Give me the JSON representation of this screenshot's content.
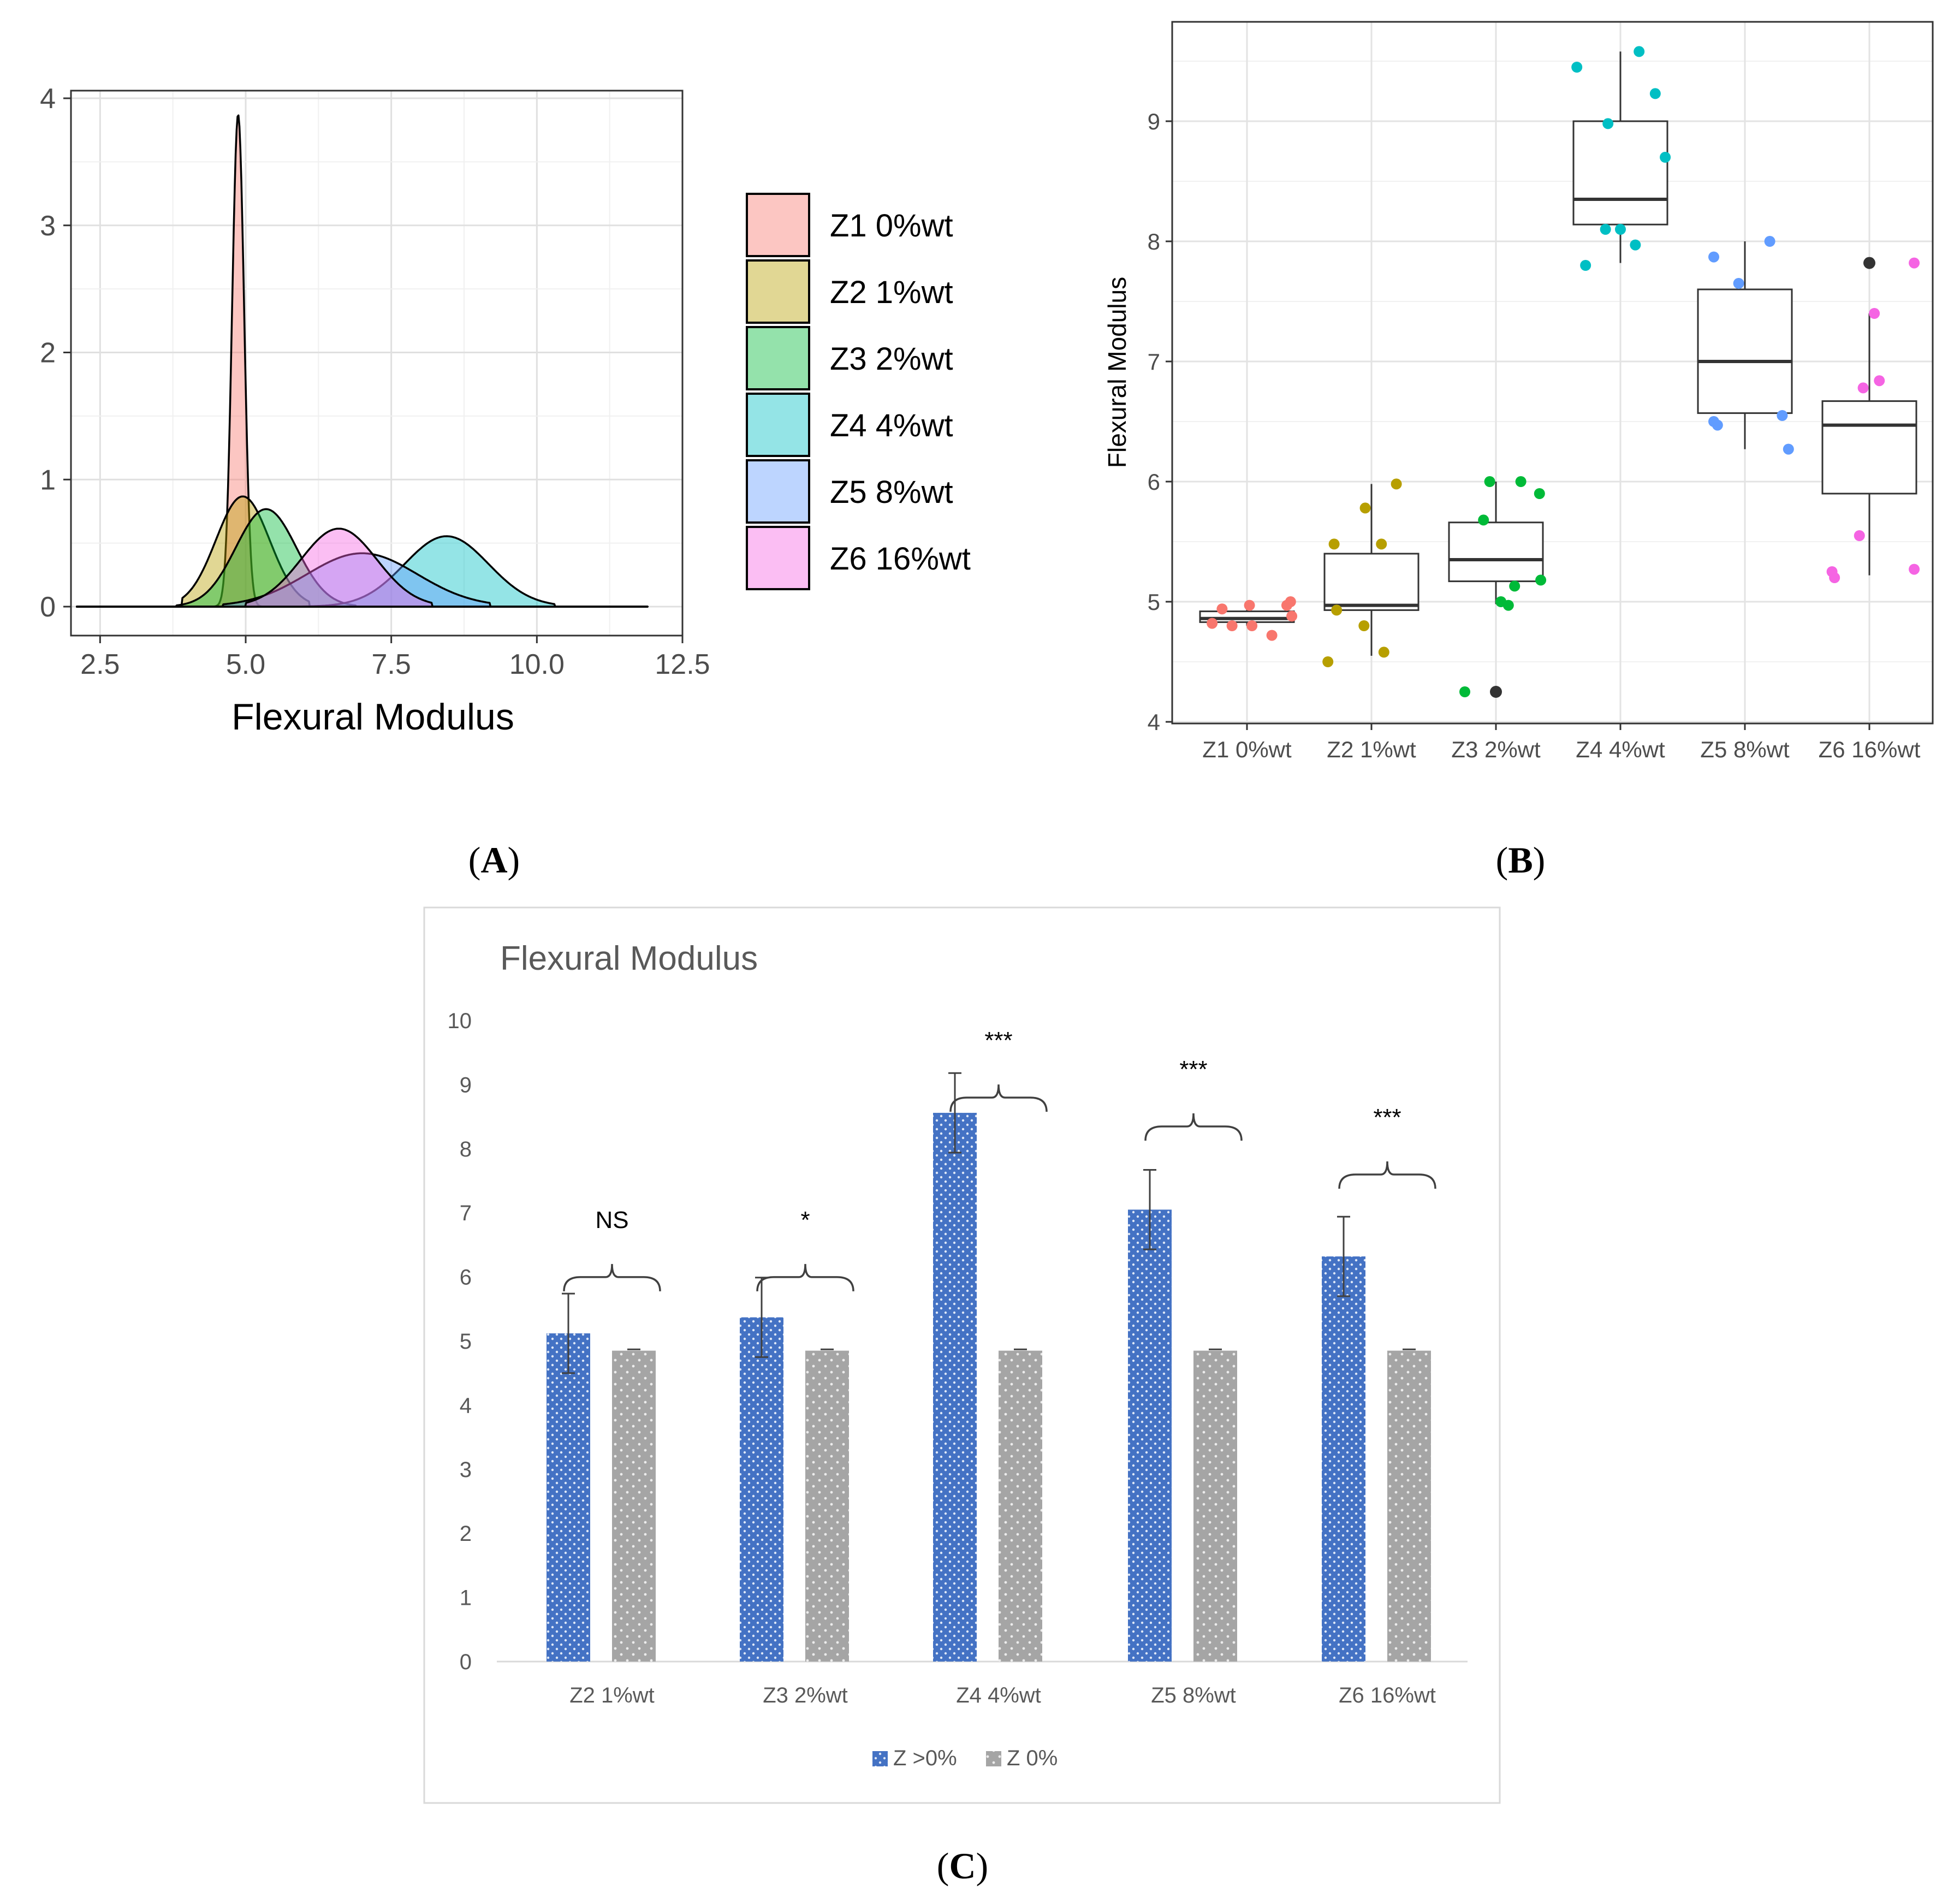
{
  "colors": {
    "Z1": "#f8766d",
    "Z2": "#b79f00",
    "Z3": "#00ba38",
    "Z4": "#00bfc4",
    "Z5": "#619cff",
    "Z6": "#f564e3",
    "bar_blue": "#4472c4",
    "bar_grey": "#a5a5a5",
    "outlier": "#333333"
  },
  "chart_data": [
    {
      "panel": "A",
      "type": "area",
      "panel_label": "(A)",
      "xlabel": "Flexural Modulus",
      "ylabel": "",
      "xlim": [
        2.0,
        12.5
      ],
      "ylim": [
        0,
        4
      ],
      "x_ticks": [
        "2.5",
        "5.0",
        "7.5",
        "10.0",
        "12.5"
      ],
      "y_ticks": [
        "0",
        "1",
        "2",
        "3",
        "4"
      ],
      "grid": true,
      "legend_position": "right",
      "series": [
        {
          "name": "Z1 0%wt",
          "key": "Z1",
          "mean": 4.87,
          "sd": 0.103,
          "range": [
            4.4,
            5.4
          ]
        },
        {
          "name": "Z2 1%wt",
          "key": "Z2",
          "mean": 4.95,
          "sd": 0.46,
          "range": [
            3.9,
            6.1
          ]
        },
        {
          "name": "Z3 2%wt",
          "key": "Z3",
          "mean": 5.35,
          "sd": 0.52,
          "range": [
            3.8,
            6.9
          ]
        },
        {
          "name": "Z4 4%wt",
          "key": "Z4",
          "mean": 8.45,
          "sd": 0.72,
          "range": [
            5.6,
            10.3
          ]
        },
        {
          "name": "Z5 8%wt",
          "key": "Z5",
          "mean": 7.0,
          "sd": 0.95,
          "range": [
            4.6,
            9.2
          ]
        },
        {
          "name": "Z6 16%wt",
          "key": "Z6",
          "mean": 6.6,
          "sd": 0.65,
          "range": [
            5.0,
            8.2
          ]
        }
      ]
    },
    {
      "panel": "B",
      "type": "scatter",
      "subtype": "boxplot-with-jitter",
      "panel_label": "(B)",
      "xlabel": "",
      "ylabel": "Flexural Modulus",
      "ylim": [
        4.0,
        9.85
      ],
      "y_ticks": [
        "4",
        "5",
        "6",
        "7",
        "8",
        "9"
      ],
      "grid": true,
      "categories": [
        "Z1 0%wt",
        "Z2 1%wt",
        "Z3 2%wt",
        "Z4 4%wt",
        "Z5 8%wt",
        "Z6 16%wt"
      ],
      "boxes": [
        {
          "key": "Z1",
          "min": 4.8,
          "q1": 4.83,
          "median": 4.86,
          "q3": 4.92,
          "max": 4.95,
          "outliers": []
        },
        {
          "key": "Z2",
          "min": 4.55,
          "q1": 4.93,
          "median": 4.97,
          "q3": 5.4,
          "max": 5.98,
          "outliers": []
        },
        {
          "key": "Z3",
          "min": 4.98,
          "q1": 5.17,
          "median": 5.35,
          "q3": 5.66,
          "max": 6.0,
          "outliers": [
            4.25
          ]
        },
        {
          "key": "Z4",
          "min": 7.82,
          "q1": 8.14,
          "median": 8.35,
          "q3": 9.0,
          "max": 9.58,
          "outliers": []
        },
        {
          "key": "Z5",
          "min": 6.27,
          "q1": 6.57,
          "median": 7.0,
          "q3": 7.6,
          "max": 8.0,
          "outliers": []
        },
        {
          "key": "Z6",
          "min": 5.22,
          "q1": 5.9,
          "median": 6.47,
          "q3": 6.67,
          "max": 7.4,
          "outliers": [
            7.82
          ]
        }
      ],
      "points": [
        {
          "group": 1,
          "dx": -0.28,
          "y": 4.82
        },
        {
          "group": 1,
          "dx": -0.2,
          "y": 4.94
        },
        {
          "group": 1,
          "dx": -0.12,
          "y": 4.8
        },
        {
          "group": 1,
          "dx": 0.02,
          "y": 4.97
        },
        {
          "group": 1,
          "dx": 0.04,
          "y": 4.8
        },
        {
          "group": 1,
          "dx": 0.2,
          "y": 4.72
        },
        {
          "group": 1,
          "dx": 0.32,
          "y": 4.97
        },
        {
          "group": 1,
          "dx": 0.35,
          "y": 5.0
        },
        {
          "group": 1,
          "dx": 0.36,
          "y": 4.88
        },
        {
          "group": 2,
          "dx": -0.35,
          "y": 4.5
        },
        {
          "group": 2,
          "dx": -0.3,
          "y": 5.48
        },
        {
          "group": 2,
          "dx": -0.28,
          "y": 4.93
        },
        {
          "group": 2,
          "dx": -0.05,
          "y": 5.78
        },
        {
          "group": 2,
          "dx": -0.06,
          "y": 4.8
        },
        {
          "group": 2,
          "dx": 0.08,
          "y": 5.48
        },
        {
          "group": 2,
          "dx": 0.1,
          "y": 4.58
        },
        {
          "group": 2,
          "dx": 0.2,
          "y": 5.98
        },
        {
          "group": 3,
          "dx": -0.25,
          "y": 4.25
        },
        {
          "group": 3,
          "dx": -0.05,
          "y": 6.0
        },
        {
          "group": 3,
          "dx": -0.1,
          "y": 5.68
        },
        {
          "group": 3,
          "dx": 0.04,
          "y": 5.0
        },
        {
          "group": 3,
          "dx": 0.1,
          "y": 4.97
        },
        {
          "group": 3,
          "dx": 0.15,
          "y": 5.13
        },
        {
          "group": 3,
          "dx": 0.2,
          "y": 6.0
        },
        {
          "group": 3,
          "dx": 0.35,
          "y": 5.9
        },
        {
          "group": 3,
          "dx": 0.36,
          "y": 5.18
        },
        {
          "group": 4,
          "dx": -0.35,
          "y": 9.45
        },
        {
          "group": 4,
          "dx": -0.28,
          "y": 7.8
        },
        {
          "group": 4,
          "dx": -0.1,
          "y": 8.98
        },
        {
          "group": 4,
          "dx": -0.12,
          "y": 8.1
        },
        {
          "group": 4,
          "dx": 0.0,
          "y": 8.1
        },
        {
          "group": 4,
          "dx": 0.12,
          "y": 7.97
        },
        {
          "group": 4,
          "dx": 0.15,
          "y": 9.58
        },
        {
          "group": 4,
          "dx": 0.28,
          "y": 9.23
        },
        {
          "group": 4,
          "dx": 0.36,
          "y": 8.7
        },
        {
          "group": 5,
          "dx": -0.25,
          "y": 7.87
        },
        {
          "group": 5,
          "dx": -0.25,
          "y": 6.5
        },
        {
          "group": 5,
          "dx": -0.22,
          "y": 6.47
        },
        {
          "group": 5,
          "dx": -0.05,
          "y": 7.65
        },
        {
          "group": 5,
          "dx": 0.2,
          "y": 8.0
        },
        {
          "group": 5,
          "dx": 0.3,
          "y": 6.55
        },
        {
          "group": 5,
          "dx": 0.35,
          "y": 6.27
        },
        {
          "group": 6,
          "dx": -0.3,
          "y": 5.25
        },
        {
          "group": 6,
          "dx": -0.28,
          "y": 5.2
        },
        {
          "group": 6,
          "dx": -0.05,
          "y": 6.78
        },
        {
          "group": 6,
          "dx": -0.08,
          "y": 5.55
        },
        {
          "group": 6,
          "dx": 0.04,
          "y": 7.4
        },
        {
          "group": 6,
          "dx": 0.08,
          "y": 6.84
        },
        {
          "group": 6,
          "dx": 0.36,
          "y": 7.82
        },
        {
          "group": 6,
          "dx": 0.36,
          "y": 5.27
        }
      ]
    },
    {
      "panel": "C",
      "type": "bar",
      "panel_label": "(C)",
      "title": "Flexural Modulus",
      "ylim": [
        0,
        10
      ],
      "y_ticks": [
        "0",
        "1",
        "2",
        "3",
        "4",
        "5",
        "6",
        "7",
        "8",
        "9",
        "10"
      ],
      "categories": [
        "Z2 1%wt",
        "Z3 2%wt",
        "Z4 4%wt",
        "Z5 8%wt",
        "Z6 16%wt"
      ],
      "series": [
        {
          "name": "Z >0%",
          "values": [
            5.12,
            5.37,
            8.56,
            7.05,
            6.32
          ],
          "errors": [
            0.62,
            0.62,
            0.62,
            0.62,
            0.62
          ]
        },
        {
          "name": "Z 0%",
          "values": [
            4.85,
            4.85,
            4.85,
            4.85,
            4.85
          ],
          "errors": [
            0.02,
            0.02,
            0.02,
            0.02,
            0.02
          ]
        }
      ],
      "significance": [
        "NS",
        "*",
        "***",
        "***",
        "***"
      ],
      "significance_top": [
        6.1,
        6.1,
        8.9,
        8.45,
        7.7
      ],
      "legend_position": "bottom"
    }
  ]
}
